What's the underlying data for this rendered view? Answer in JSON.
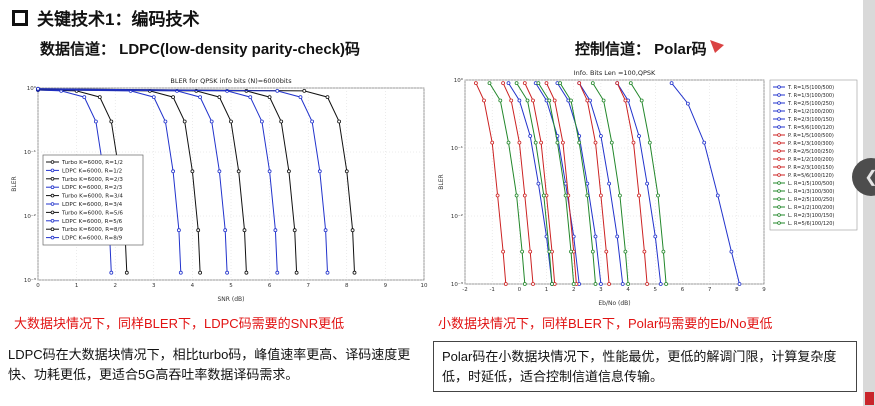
{
  "header": {
    "title": "关键技术1：编码技术"
  },
  "left_panel": {
    "heading": "数据信道： LDPC(low-density parity-check)码",
    "caption": "大数据块情况下，同样BLER下，LDPC码需要的SNR更低",
    "note": "LDPC码在大数据块情况下，相比turbo码，峰值速率更高、译码速度更快、功耗更低，更适合5G高吞吐率数据译码需求。"
  },
  "right_panel": {
    "heading": "控制信道： Polar码",
    "caption": "小数据块情况下，同样BLER下，Polar码需要的Eb/No更低",
    "note": "Polar码在小数据块情况下，性能最优，更低的解调门限，计算复杂度低，时延低，适合控制信道信息传输。"
  },
  "nav": {
    "prev_label": "❮"
  },
  "colors": {
    "turbo": "#111111",
    "ldpc": "#2233cc",
    "polar": "#cc2222",
    "green": "#22872a",
    "caption_red": "#e11212"
  },
  "chart_data": [
    {
      "type": "line",
      "title": "BLER for QPSK info bits (N)=6000bits",
      "xlabel": "SNR (dB)",
      "ylabel": "BLER",
      "xlim": [
        0,
        10
      ],
      "xticks": [
        0,
        1,
        2,
        3,
        4,
        5,
        6,
        7,
        8,
        9,
        10
      ],
      "ylog": [
        0,
        -3
      ],
      "ytick_labels": [
        "10⁰",
        "10⁻¹",
        "10⁻²",
        "10⁻³"
      ],
      "legend": "inside-left",
      "series": [
        {
          "name": "Turbo K=6000, R=1/2",
          "color": "#111111",
          "points": [
            [
              0,
              0.93
            ],
            [
              1.0,
              0.9
            ],
            [
              1.6,
              0.72
            ],
            [
              1.9,
              0.3
            ],
            [
              2.1,
              0.05
            ],
            [
              2.25,
              0.006
            ],
            [
              2.3,
              0.0013
            ]
          ]
        },
        {
          "name": "LDPC K=6000, R=1/2",
          "color": "#2233cc",
          "points": [
            [
              0,
              0.93
            ],
            [
              0.6,
              0.9
            ],
            [
              1.2,
              0.72
            ],
            [
              1.5,
              0.3
            ],
            [
              1.7,
              0.05
            ],
            [
              1.85,
              0.006
            ],
            [
              1.9,
              0.0013
            ]
          ]
        },
        {
          "name": "Turbo K=6000, R=2/3",
          "color": "#111111",
          "points": [
            [
              0,
              0.94
            ],
            [
              2.9,
              0.9
            ],
            [
              3.5,
              0.72
            ],
            [
              3.8,
              0.3
            ],
            [
              4.0,
              0.05
            ],
            [
              4.15,
              0.006
            ],
            [
              4.2,
              0.0013
            ]
          ]
        },
        {
          "name": "LDPC K=6000, R=2/3",
          "color": "#2233cc",
          "points": [
            [
              0,
              0.94
            ],
            [
              2.4,
              0.9
            ],
            [
              3.0,
              0.72
            ],
            [
              3.3,
              0.3
            ],
            [
              3.5,
              0.05
            ],
            [
              3.65,
              0.006
            ],
            [
              3.7,
              0.0013
            ]
          ]
        },
        {
          "name": "Turbo K=6000, R=3/4",
          "color": "#111111",
          "points": [
            [
              0,
              0.95
            ],
            [
              4.1,
              0.9
            ],
            [
              4.7,
              0.72
            ],
            [
              5.0,
              0.3
            ],
            [
              5.2,
              0.05
            ],
            [
              5.35,
              0.006
            ],
            [
              5.4,
              0.0013
            ]
          ]
        },
        {
          "name": "LDPC K=6000, R=3/4",
          "color": "#2233cc",
          "points": [
            [
              0,
              0.95
            ],
            [
              3.6,
              0.9
            ],
            [
              4.2,
              0.72
            ],
            [
              4.5,
              0.3
            ],
            [
              4.7,
              0.05
            ],
            [
              4.85,
              0.006
            ],
            [
              4.9,
              0.0013
            ]
          ]
        },
        {
          "name": "Turbo K=6000, R=5/6",
          "color": "#111111",
          "points": [
            [
              0,
              0.96
            ],
            [
              5.4,
              0.9
            ],
            [
              6.0,
              0.72
            ],
            [
              6.3,
              0.3
            ],
            [
              6.5,
              0.05
            ],
            [
              6.65,
              0.006
            ],
            [
              6.7,
              0.0013
            ]
          ]
        },
        {
          "name": "LDPC K=6000, R=5/6",
          "color": "#2233cc",
          "points": [
            [
              0,
              0.96
            ],
            [
              4.9,
              0.9
            ],
            [
              5.5,
              0.72
            ],
            [
              5.8,
              0.3
            ],
            [
              6.0,
              0.05
            ],
            [
              6.15,
              0.006
            ],
            [
              6.2,
              0.0013
            ]
          ]
        },
        {
          "name": "Turbo K=6000, R=8/9",
          "color": "#111111",
          "points": [
            [
              0,
              0.97
            ],
            [
              6.9,
              0.9
            ],
            [
              7.5,
              0.72
            ],
            [
              7.8,
              0.3
            ],
            [
              8.0,
              0.05
            ],
            [
              8.15,
              0.006
            ],
            [
              8.2,
              0.0013
            ]
          ]
        },
        {
          "name": "LDPC K=6000, R=8/9",
          "color": "#2233cc",
          "points": [
            [
              0,
              0.97
            ],
            [
              6.2,
              0.9
            ],
            [
              6.8,
              0.72
            ],
            [
              7.1,
              0.3
            ],
            [
              7.3,
              0.05
            ],
            [
              7.45,
              0.006
            ],
            [
              7.5,
              0.0013
            ]
          ]
        }
      ]
    },
    {
      "type": "line",
      "title": "Info. Bits Len =100,QPSK",
      "xlabel": "Eb/No (dB)",
      "ylabel": "BLER",
      "xlim": [
        -2,
        9
      ],
      "xticks": [
        -2,
        -1,
        0,
        1,
        2,
        3,
        4,
        5,
        6,
        7,
        8,
        9
      ],
      "ylog": [
        0,
        -3
      ],
      "ytick_labels": [
        "10⁰",
        "10⁻¹",
        "10⁻²",
        "10⁻³"
      ],
      "legend": "right",
      "series": [
        {
          "name": "T. R=1/5(100/500)",
          "color": "#2233cc",
          "points": [
            [
              -0.4,
              0.9
            ],
            [
              0.0,
              0.5
            ],
            [
              0.4,
              0.15
            ],
            [
              0.7,
              0.03
            ],
            [
              1.0,
              0.005
            ],
            [
              1.2,
              0.001
            ]
          ]
        },
        {
          "name": "T. R=1/3(100/300)",
          "color": "#2233cc",
          "points": [
            [
              0.6,
              0.9
            ],
            [
              1.0,
              0.5
            ],
            [
              1.4,
              0.15
            ],
            [
              1.7,
              0.03
            ],
            [
              2.0,
              0.005
            ],
            [
              2.2,
              0.001
            ]
          ]
        },
        {
          "name": "T. R=2/5(100/250)",
          "color": "#2233cc",
          "points": [
            [
              1.4,
              0.9
            ],
            [
              1.8,
              0.5
            ],
            [
              2.2,
              0.15
            ],
            [
              2.5,
              0.03
            ],
            [
              2.8,
              0.005
            ],
            [
              3.0,
              0.001
            ]
          ]
        },
        {
          "name": "T. R=1/2(100/200)",
          "color": "#2233cc",
          "points": [
            [
              2.2,
              0.9
            ],
            [
              2.6,
              0.5
            ],
            [
              3.0,
              0.15
            ],
            [
              3.3,
              0.03
            ],
            [
              3.6,
              0.005
            ],
            [
              3.8,
              0.001
            ]
          ]
        },
        {
          "name": "T. R=2/3(100/150)",
          "color": "#2233cc",
          "points": [
            [
              3.6,
              0.9
            ],
            [
              4.0,
              0.5
            ],
            [
              4.4,
              0.15
            ],
            [
              4.7,
              0.03
            ],
            [
              5.0,
              0.005
            ],
            [
              5.2,
              0.001
            ]
          ]
        },
        {
          "name": "T. R=5/6(100/120)",
          "color": "#2233cc",
          "points": [
            [
              5.6,
              0.9
            ],
            [
              6.2,
              0.45
            ],
            [
              6.8,
              0.12
            ],
            [
              7.3,
              0.02
            ],
            [
              7.8,
              0.003
            ],
            [
              8.1,
              0.001
            ]
          ]
        },
        {
          "name": "P. R=1/5(100/500)",
          "color": "#cc2222",
          "points": [
            [
              -1.6,
              0.9
            ],
            [
              -1.3,
              0.5
            ],
            [
              -1.0,
              0.12
            ],
            [
              -0.8,
              0.02
            ],
            [
              -0.6,
              0.003
            ],
            [
              -0.5,
              0.001
            ]
          ]
        },
        {
          "name": "P. R=1/3(100/300)",
          "color": "#cc2222",
          "points": [
            [
              -0.6,
              0.9
            ],
            [
              -0.3,
              0.5
            ],
            [
              0.0,
              0.12
            ],
            [
              0.2,
              0.02
            ],
            [
              0.4,
              0.003
            ],
            [
              0.5,
              0.001
            ]
          ]
        },
        {
          "name": "P. R=2/5(100/250)",
          "color": "#cc2222",
          "points": [
            [
              0.2,
              0.9
            ],
            [
              0.5,
              0.5
            ],
            [
              0.8,
              0.12
            ],
            [
              1.0,
              0.02
            ],
            [
              1.2,
              0.003
            ],
            [
              1.3,
              0.001
            ]
          ]
        },
        {
          "name": "P. R=1/2(100/200)",
          "color": "#cc2222",
          "points": [
            [
              1.0,
              0.9
            ],
            [
              1.3,
              0.5
            ],
            [
              1.6,
              0.12
            ],
            [
              1.8,
              0.02
            ],
            [
              2.0,
              0.003
            ],
            [
              2.1,
              0.001
            ]
          ]
        },
        {
          "name": "P. R=2/3(100/150)",
          "color": "#cc2222",
          "points": [
            [
              2.2,
              0.9
            ],
            [
              2.5,
              0.5
            ],
            [
              2.8,
              0.12
            ],
            [
              3.0,
              0.02
            ],
            [
              3.2,
              0.003
            ],
            [
              3.3,
              0.001
            ]
          ]
        },
        {
          "name": "P. R=5/6(100/120)",
          "color": "#cc2222",
          "points": [
            [
              3.6,
              0.9
            ],
            [
              3.9,
              0.5
            ],
            [
              4.2,
              0.12
            ],
            [
              4.4,
              0.02
            ],
            [
              4.6,
              0.003
            ],
            [
              4.7,
              0.001
            ]
          ]
        },
        {
          "name": "L. R=1/5(100/500)",
          "color": "#22872a",
          "points": [
            [
              -1.1,
              0.9
            ],
            [
              -0.7,
              0.5
            ],
            [
              -0.4,
              0.12
            ],
            [
              -0.1,
              0.02
            ],
            [
              0.1,
              0.003
            ],
            [
              0.2,
              0.001
            ]
          ]
        },
        {
          "name": "L. R=1/3(100/300)",
          "color": "#22872a",
          "points": [
            [
              -0.1,
              0.9
            ],
            [
              0.3,
              0.5
            ],
            [
              0.6,
              0.12
            ],
            [
              0.9,
              0.02
            ],
            [
              1.1,
              0.003
            ],
            [
              1.2,
              0.001
            ]
          ]
        },
        {
          "name": "L. R=2/5(100/250)",
          "color": "#22872a",
          "points": [
            [
              0.7,
              0.9
            ],
            [
              1.1,
              0.5
            ],
            [
              1.4,
              0.12
            ],
            [
              1.7,
              0.02
            ],
            [
              1.9,
              0.003
            ],
            [
              2.0,
              0.001
            ]
          ]
        },
        {
          "name": "L. R=1/2(100/200)",
          "color": "#22872a",
          "points": [
            [
              1.5,
              0.9
            ],
            [
              1.9,
              0.5
            ],
            [
              2.2,
              0.12
            ],
            [
              2.5,
              0.02
            ],
            [
              2.7,
              0.003
            ],
            [
              2.8,
              0.001
            ]
          ]
        },
        {
          "name": "L. R=2/3(100/150)",
          "color": "#22872a",
          "points": [
            [
              2.7,
              0.9
            ],
            [
              3.1,
              0.5
            ],
            [
              3.4,
              0.12
            ],
            [
              3.7,
              0.02
            ],
            [
              3.9,
              0.003
            ],
            [
              4.0,
              0.001
            ]
          ]
        },
        {
          "name": "L. R=5/6(100/120)",
          "color": "#22872a",
          "points": [
            [
              4.1,
              0.9
            ],
            [
              4.5,
              0.5
            ],
            [
              4.8,
              0.12
            ],
            [
              5.1,
              0.02
            ],
            [
              5.3,
              0.003
            ],
            [
              5.4,
              0.001
            ]
          ]
        }
      ]
    }
  ]
}
